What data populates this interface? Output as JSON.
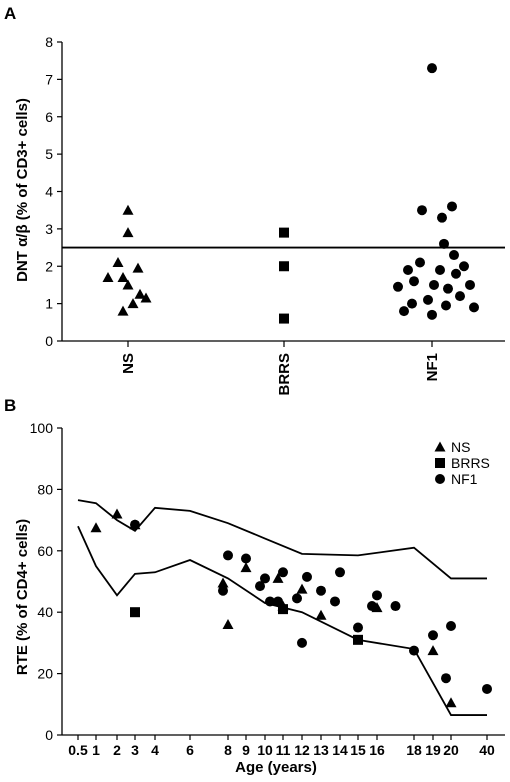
{
  "chart_data": [
    {
      "panel_label": "A",
      "type": "scatter",
      "ylabel": "DNT α/β (% of CD3+ cells)",
      "ylim": [
        0,
        8
      ],
      "yticks": [
        "0",
        "1",
        "2",
        "3",
        "4",
        "5",
        "6",
        "7",
        "8"
      ],
      "categories": [
        "NS",
        "BRRS",
        "NF1"
      ],
      "reference_line": 2.5,
      "series": [
        {
          "name": "NS",
          "marker": "triangle",
          "values": [
            3.5,
            2.9,
            2.1,
            1.95,
            1.7,
            1.7,
            1.5,
            1.25,
            1.15,
            1.0,
            0.8
          ]
        },
        {
          "name": "BRRS",
          "marker": "square",
          "values": [
            2.9,
            2.0,
            0.6
          ]
        },
        {
          "name": "NF1",
          "marker": "circle",
          "values": [
            7.3,
            3.6,
            3.5,
            3.3,
            2.6,
            2.3,
            2.1,
            2.0,
            1.9,
            1.9,
            1.8,
            1.6,
            1.5,
            1.5,
            1.45,
            1.4,
            1.2,
            1.1,
            1.0,
            0.95,
            0.9,
            0.8,
            0.7
          ]
        }
      ]
    },
    {
      "panel_label": "B",
      "type": "scatter",
      "xlabel": "Age (years)",
      "ylabel": "RTE (% of CD4+ cells)",
      "ylim": [
        0,
        100
      ],
      "yticks": [
        "0",
        "20",
        "40",
        "60",
        "80",
        "100"
      ],
      "xticks": [
        "0.5",
        "1",
        "2",
        "3",
        "4",
        "6",
        "8",
        "9",
        "10",
        "11",
        "12",
        "13",
        "14",
        "15",
        "16",
        "18",
        "19",
        "20",
        "40"
      ],
      "legend": [
        "NS",
        "BRRS",
        "NF1"
      ],
      "legend_position": "top-right",
      "upper_line": {
        "x": [
          "0.5",
          "1",
          "2",
          "3",
          "4",
          "6",
          "8",
          "10",
          "12",
          "15",
          "18",
          "20",
          "40"
        ],
        "y": [
          76.5,
          75.5,
          70,
          66.5,
          74,
          73,
          69,
          64,
          59,
          58.5,
          61,
          51,
          51
        ]
      },
      "lower_line": {
        "x": [
          "0.5",
          "1",
          "2",
          "3",
          "4",
          "6",
          "8",
          "10",
          "12",
          "15",
          "18",
          "20",
          "40"
        ],
        "y": [
          68,
          55,
          45.5,
          52.5,
          53,
          57,
          51,
          43,
          40,
          31,
          28,
          6.5,
          6.5
        ]
      },
      "series": [
        {
          "name": "NS",
          "marker": "triangle",
          "points": [
            [
              "1",
              67.5
            ],
            [
              "2",
              72
            ],
            [
              "3",
              68.5
            ],
            [
              "8",
              36
            ],
            [
              "8",
              49.5
            ],
            [
              "9",
              54.5
            ],
            [
              "11",
              42
            ],
            [
              "11",
              51
            ],
            [
              "12",
              47.5
            ],
            [
              "13",
              39
            ],
            [
              "16",
              41.5
            ],
            [
              "19",
              27.5
            ],
            [
              "20",
              10.5
            ]
          ]
        },
        {
          "name": "BRRS",
          "marker": "square",
          "points": [
            [
              "3",
              40
            ],
            [
              "11",
              41
            ],
            [
              "15",
              31
            ]
          ]
        },
        {
          "name": "NF1",
          "marker": "circle",
          "points": [
            [
              "3",
              68.5
            ],
            [
              "8",
              58.5
            ],
            [
              "8",
              47
            ],
            [
              "9",
              57.5
            ],
            [
              "10",
              51
            ],
            [
              "10",
              48.5
            ],
            [
              "10",
              43.5
            ],
            [
              "11",
              53
            ],
            [
              "11",
              43.5
            ],
            [
              "12",
              30
            ],
            [
              "12",
              44.5
            ],
            [
              "12",
              51.5
            ],
            [
              "13",
              47
            ],
            [
              "14",
              53
            ],
            [
              "14",
              43.5
            ],
            [
              "15",
              35
            ],
            [
              "16",
              45.5
            ],
            [
              "16",
              42
            ],
            [
              "17",
              42
            ],
            [
              "18",
              27.5
            ],
            [
              "19",
              32.5
            ],
            [
              "20",
              35.5
            ],
            [
              "20",
              18.5
            ],
            [
              "40",
              15
            ]
          ]
        }
      ]
    }
  ]
}
